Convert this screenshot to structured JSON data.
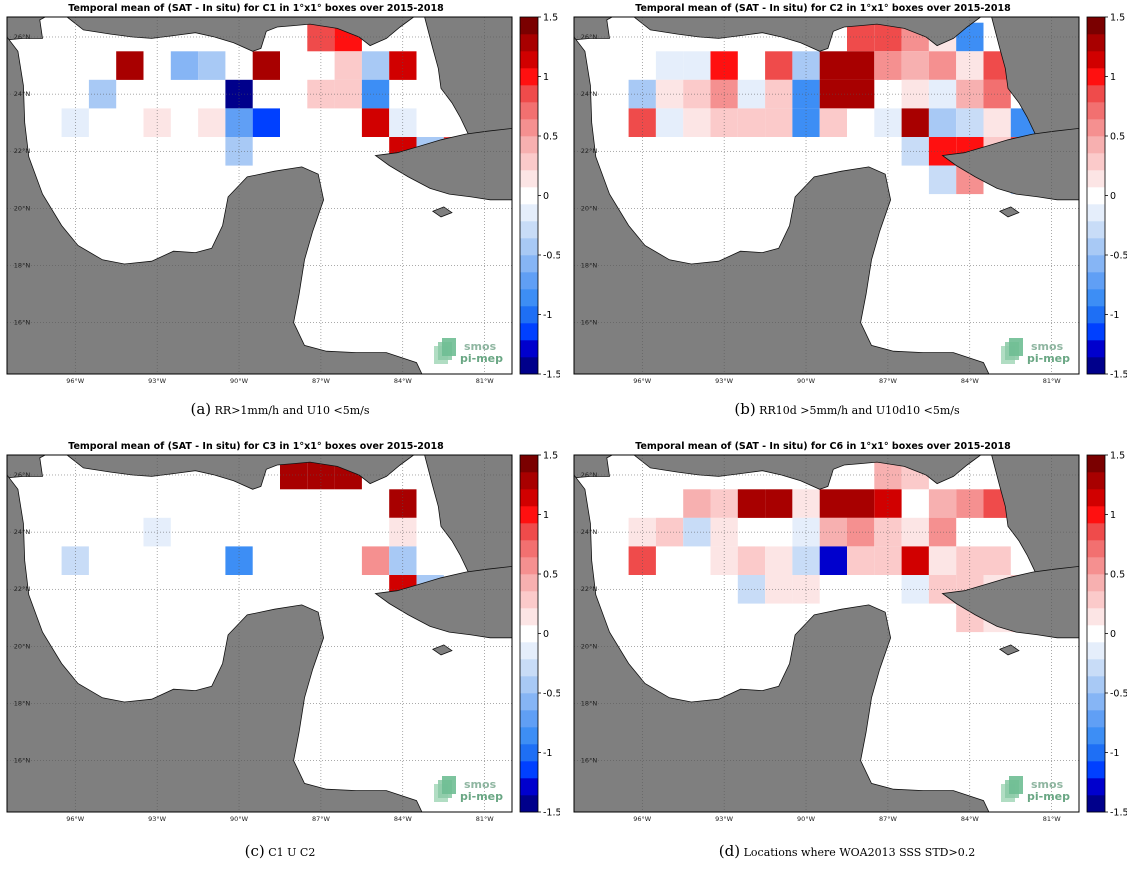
{
  "panels": [
    {
      "id": "a",
      "title": "Temporal mean of (SAT - In situ) for C1 in 1°x1° boxes over 2015-2018",
      "caption_letter": "(a)",
      "caption_text": "RR>1mm/h and U10 <5m/s",
      "cells": [
        {
          "lon": -87,
          "lat": 26,
          "value": 0.9
        },
        {
          "lon": -86,
          "lat": 26,
          "value": 0.95
        },
        {
          "lon": -94,
          "lat": 25,
          "value": 1.3
        },
        {
          "lon": -92,
          "lat": 25,
          "value": -0.6
        },
        {
          "lon": -91,
          "lat": 25,
          "value": -0.4
        },
        {
          "lon": -89,
          "lat": 25,
          "value": 1.35
        },
        {
          "lon": -86,
          "lat": 25,
          "value": 0.3
        },
        {
          "lon": -85,
          "lat": 25,
          "value": -0.5
        },
        {
          "lon": -84,
          "lat": 25,
          "value": 1.2
        },
        {
          "lon": -95,
          "lat": 24,
          "value": -0.5
        },
        {
          "lon": -90,
          "lat": 24,
          "value": -1.45
        },
        {
          "lon": -87,
          "lat": 24,
          "value": 0.25
        },
        {
          "lon": -86,
          "lat": 24,
          "value": 0.25
        },
        {
          "lon": -85,
          "lat": 24,
          "value": -0.8
        },
        {
          "lon": -96,
          "lat": 23,
          "value": -0.2
        },
        {
          "lon": -93,
          "lat": 23,
          "value": 0.15
        },
        {
          "lon": -91,
          "lat": 23,
          "value": 0.15
        },
        {
          "lon": -90,
          "lat": 23,
          "value": -0.7
        },
        {
          "lon": -89,
          "lat": 23,
          "value": -1.2
        },
        {
          "lon": -85,
          "lat": 23,
          "value": 1.1
        },
        {
          "lon": -84,
          "lat": 23,
          "value": -0.1
        },
        {
          "lon": -90,
          "lat": 22,
          "value": -0.5
        },
        {
          "lon": -84,
          "lat": 22,
          "value": 1.1
        },
        {
          "lon": -83,
          "lat": 22,
          "value": -0.5
        },
        {
          "lon": -82,
          "lat": 22,
          "value": 0.9
        }
      ]
    },
    {
      "id": "b",
      "title": "Temporal mean of (SAT - In situ) for C2 in 1°x1° boxes over 2015-2018",
      "caption_letter": "(b)",
      "caption_text": "RR10d >5mm/h and U10d10 <5m/s",
      "cells": [
        {
          "lon": -88,
          "lat": 26,
          "value": 0.9
        },
        {
          "lon": -87,
          "lat": 26,
          "value": 0.9
        },
        {
          "lon": -86,
          "lat": 26,
          "value": 0.5
        },
        {
          "lon": -85,
          "lat": 26,
          "value": 0.2
        },
        {
          "lon": -84,
          "lat": 26,
          "value": -0.8
        },
        {
          "lon": -95,
          "lat": 25,
          "value": -0.2
        },
        {
          "lon": -94,
          "lat": 25,
          "value": -0.1
        },
        {
          "lon": -93,
          "lat": 25,
          "value": 1.0
        },
        {
          "lon": -91,
          "lat": 25,
          "value": 0.8
        },
        {
          "lon": -90,
          "lat": 25,
          "value": -0.4
        },
        {
          "lon": -89,
          "lat": 25,
          "value": 1.3
        },
        {
          "lon": -88,
          "lat": 25,
          "value": 1.3
        },
        {
          "lon": -87,
          "lat": 25,
          "value": 0.6
        },
        {
          "lon": -86,
          "lat": 25,
          "value": 0.4
        },
        {
          "lon": -85,
          "lat": 25,
          "value": 0.5
        },
        {
          "lon": -84,
          "lat": 25,
          "value": 0.15
        },
        {
          "lon": -83,
          "lat": 25,
          "value": 0.9
        },
        {
          "lon": -96,
          "lat": 24,
          "value": -0.5
        },
        {
          "lon": -95,
          "lat": 24,
          "value": 0.1
        },
        {
          "lon": -94,
          "lat": 24,
          "value": 0.25
        },
        {
          "lon": -93,
          "lat": 24,
          "value": 0.6
        },
        {
          "lon": -92,
          "lat": 24,
          "value": -0.15
        },
        {
          "lon": -91,
          "lat": 24,
          "value": 0.3
        },
        {
          "lon": -90,
          "lat": 24,
          "value": -0.9
        },
        {
          "lon": -89,
          "lat": 24,
          "value": 1.3
        },
        {
          "lon": -88,
          "lat": 24,
          "value": 1.3
        },
        {
          "lon": -86,
          "lat": 24,
          "value": 0.1
        },
        {
          "lon": -85,
          "lat": 24,
          "value": -0.1
        },
        {
          "lon": -84,
          "lat": 24,
          "value": 0.4
        },
        {
          "lon": -83,
          "lat": 24,
          "value": 0.7
        },
        {
          "lon": -96,
          "lat": 23,
          "value": 0.9
        },
        {
          "lon": -95,
          "lat": 23,
          "value": -0.1
        },
        {
          "lon": -94,
          "lat": 23,
          "value": 0.15
        },
        {
          "lon": -93,
          "lat": 23,
          "value": 0.35
        },
        {
          "lon": -92,
          "lat": 23,
          "value": 0.3
        },
        {
          "lon": -91,
          "lat": 23,
          "value": 0.3
        },
        {
          "lon": -90,
          "lat": 23,
          "value": -0.8
        },
        {
          "lon": -89,
          "lat": 23,
          "value": 0.3
        },
        {
          "lon": -87,
          "lat": 23,
          "value": -0.1
        },
        {
          "lon": -86,
          "lat": 23,
          "value": 1.3
        },
        {
          "lon": -85,
          "lat": 23,
          "value": -0.4
        },
        {
          "lon": -84,
          "lat": 23,
          "value": -0.3
        },
        {
          "lon": -83,
          "lat": 23,
          "value": 0.2
        },
        {
          "lon": -82,
          "lat": 23,
          "value": -0.8
        },
        {
          "lon": -86,
          "lat": 22,
          "value": -0.3
        },
        {
          "lon": -85,
          "lat": 22,
          "value": 0.95
        },
        {
          "lon": -84,
          "lat": 22,
          "value": 0.95
        },
        {
          "lon": -83,
          "lat": 22,
          "value": 0.3
        },
        {
          "lon": -82,
          "lat": 22,
          "value": 0.8
        },
        {
          "lon": -85,
          "lat": 21,
          "value": -0.3
        },
        {
          "lon": -84,
          "lat": 21,
          "value": 0.6
        },
        {
          "lon": -82,
          "lat": 21,
          "value": -0.5
        }
      ]
    },
    {
      "id": "c",
      "title": "Temporal mean of (SAT - In situ) for C3 in 1°x1° boxes over 2015-2018",
      "caption_letter": "(c)",
      "caption_text": "C1 U C2",
      "cells": [
        {
          "lon": -88,
          "lat": 26,
          "value": 1.35
        },
        {
          "lon": -87,
          "lat": 26,
          "value": 1.35
        },
        {
          "lon": -86,
          "lat": 26,
          "value": 1.35
        },
        {
          "lon": -84,
          "lat": 25,
          "value": 1.35
        },
        {
          "lon": -93,
          "lat": 24,
          "value": -0.1
        },
        {
          "lon": -84,
          "lat": 24,
          "value": 0.15
        },
        {
          "lon": -96,
          "lat": 23,
          "value": -0.25
        },
        {
          "lon": -90,
          "lat": 23,
          "value": -0.8
        },
        {
          "lon": -85,
          "lat": 23,
          "value": 0.55
        },
        {
          "lon": -84,
          "lat": 23,
          "value": -0.45
        },
        {
          "lon": -84,
          "lat": 22,
          "value": 1.1
        },
        {
          "lon": -83,
          "lat": 22,
          "value": -0.4
        }
      ]
    },
    {
      "id": "d",
      "title": "Temporal mean of (SAT - In situ) for C6 in 1°x1° boxes over 2015-2018",
      "caption_letter": "(d)",
      "caption_text": "Locations where WOA2013 SSS STD>0.2",
      "cells": [
        {
          "lon": -87,
          "lat": 26,
          "value": 0.4
        },
        {
          "lon": -86,
          "lat": 26,
          "value": 0.25
        },
        {
          "lon": -94,
          "lat": 25,
          "value": 0.45
        },
        {
          "lon": -93,
          "lat": 25,
          "value": 0.25
        },
        {
          "lon": -92,
          "lat": 25,
          "value": 1.3
        },
        {
          "lon": -91,
          "lat": 25,
          "value": 1.3
        },
        {
          "lon": -90,
          "lat": 25,
          "value": 0.2
        },
        {
          "lon": -89,
          "lat": 25,
          "value": 1.35
        },
        {
          "lon": -88,
          "lat": 25,
          "value": 1.35
        },
        {
          "lon": -87,
          "lat": 25,
          "value": 1.2
        },
        {
          "lon": -85,
          "lat": 25,
          "value": 0.45
        },
        {
          "lon": -84,
          "lat": 25,
          "value": 0.5
        },
        {
          "lon": -83,
          "lat": 25,
          "value": 0.9
        },
        {
          "lon": -96,
          "lat": 24,
          "value": 0.15
        },
        {
          "lon": -95,
          "lat": 24,
          "value": 0.3
        },
        {
          "lon": -94,
          "lat": 24,
          "value": -0.3
        },
        {
          "lon": -93,
          "lat": 24,
          "value": 0.2
        },
        {
          "lon": -90,
          "lat": 24,
          "value": -0.1
        },
        {
          "lon": -89,
          "lat": 24,
          "value": 0.4
        },
        {
          "lon": -88,
          "lat": 24,
          "value": 0.6
        },
        {
          "lon": -87,
          "lat": 24,
          "value": 0.35
        },
        {
          "lon": -86,
          "lat": 24,
          "value": 0.2
        },
        {
          "lon": -85,
          "lat": 24,
          "value": 0.5
        },
        {
          "lon": -96,
          "lat": 23,
          "value": 0.9
        },
        {
          "lon": -93,
          "lat": 23,
          "value": 0.2
        },
        {
          "lon": -92,
          "lat": 23,
          "value": 0.3
        },
        {
          "lon": -91,
          "lat": 23,
          "value": 0.2
        },
        {
          "lon": -90,
          "lat": 23,
          "value": -0.3
        },
        {
          "lon": -89,
          "lat": 23,
          "value": -1.35
        },
        {
          "lon": -88,
          "lat": 23,
          "value": 0.25
        },
        {
          "lon": -87,
          "lat": 23,
          "value": 0.3
        },
        {
          "lon": -86,
          "lat": 23,
          "value": 1.1
        },
        {
          "lon": -85,
          "lat": 23,
          "value": 0.2
        },
        {
          "lon": -84,
          "lat": 23,
          "value": 0.3
        },
        {
          "lon": -83,
          "lat": 23,
          "value": 0.35
        },
        {
          "lon": -92,
          "lat": 22,
          "value": -0.25
        },
        {
          "lon": -91,
          "lat": 22,
          "value": 0.2
        },
        {
          "lon": -90,
          "lat": 22,
          "value": 0.1
        },
        {
          "lon": -86,
          "lat": 22,
          "value": -0.1
        },
        {
          "lon": -85,
          "lat": 22,
          "value": 0.35
        },
        {
          "lon": -84,
          "lat": 22,
          "value": 0.35
        },
        {
          "lon": -83,
          "lat": 22,
          "value": 0.2
        },
        {
          "lon": -82,
          "lat": 22,
          "value": 0.35
        },
        {
          "lon": -84,
          "lat": 21,
          "value": 0.35
        },
        {
          "lon": -83,
          "lat": 21,
          "value": 0.2
        },
        {
          "lon": -82,
          "lat": 21,
          "value": 0.35
        }
      ]
    }
  ],
  "map": {
    "lon_range": [
      -98.5,
      -80
    ],
    "lat_range": [
      14.2,
      26.7
    ],
    "lon_ticks": [
      -96,
      -93,
      -90,
      -87,
      -84,
      -81
    ],
    "lon_tick_labels": [
      "96°W",
      "93°W",
      "90°W",
      "87°W",
      "84°W",
      "81°W"
    ],
    "lat_ticks": [
      16,
      18,
      20,
      22,
      24,
      26
    ],
    "lat_tick_labels": [
      "16°N",
      "18°N",
      "20°N",
      "22°N",
      "24°N",
      "26°N"
    ],
    "land_color": "#7f7f7f",
    "ocean_color": "#ffffff",
    "grid": "dotted"
  },
  "colorbar": {
    "range": [
      -1.5,
      1.5
    ],
    "ticks": [
      -1.5,
      -1,
      -0.5,
      0,
      0.5,
      1,
      1.5
    ],
    "tick_labels": [
      "-1.5",
      "-1",
      "-0.5",
      "0",
      "0.5",
      "1",
      "1.5"
    ],
    "colors": [
      "#00008b",
      "#0000cd",
      "#0040ff",
      "#1e6ff5",
      "#3d8ef5",
      "#609ff5",
      "#86b5f5",
      "#a8c9f5",
      "#c8dcf7",
      "#e5eefb",
      "#ffffff",
      "#fce5e5",
      "#fbcaca",
      "#f7b0b0",
      "#f59090",
      "#f27070",
      "#ef4b4b",
      "#ff1010",
      "#d10000",
      "#a80000",
      "#7a0000"
    ]
  },
  "logo": {
    "line1": "smos",
    "line2": "pi-mep"
  }
}
